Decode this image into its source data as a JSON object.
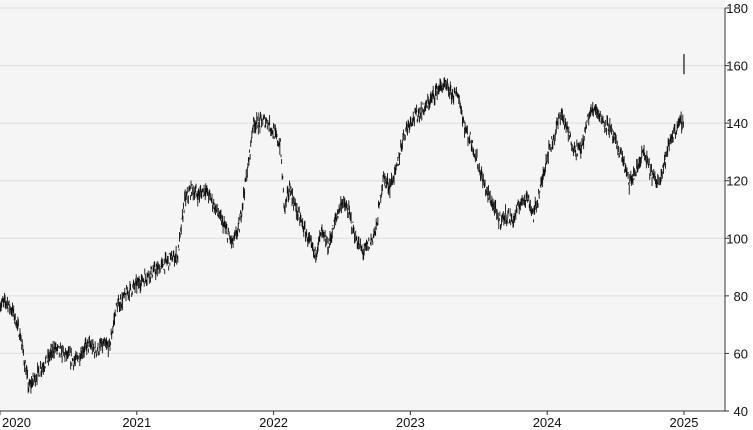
{
  "chart_data": {
    "type": "line",
    "style": "hlc-bars",
    "title": "",
    "xlabel": "",
    "ylabel": "",
    "y_axis_side": "right",
    "ylim": [
      40,
      180
    ],
    "y_ticks": [
      40,
      60,
      80,
      100,
      120,
      140,
      160,
      180
    ],
    "y_tick_labels": [
      "40",
      "60",
      "80",
      "100",
      "120",
      "140",
      "160",
      "180"
    ],
    "x_range": [
      2020.0,
      2025.3
    ],
    "x_ticks": [
      2020,
      2021,
      2022,
      2023,
      2024,
      2025
    ],
    "x_tick_labels": [
      "2020",
      "2021",
      "2022",
      "2023",
      "2024",
      "2025"
    ],
    "grid": "horizontal",
    "colors": {
      "plot_background": "#f5f5f5",
      "grid": "#dddddd",
      "series": "#111111"
    },
    "series": [
      {
        "points": [
          [
            2020.0,
            77
          ],
          [
            2020.05,
            78
          ],
          [
            2020.1,
            74
          ],
          [
            2020.15,
            66
          ],
          [
            2020.18,
            57
          ],
          [
            2020.21,
            48
          ],
          [
            2020.25,
            51
          ],
          [
            2020.3,
            55
          ],
          [
            2020.35,
            58
          ],
          [
            2020.4,
            62
          ],
          [
            2020.45,
            60
          ],
          [
            2020.5,
            59
          ],
          [
            2020.55,
            57
          ],
          [
            2020.6,
            61
          ],
          [
            2020.65,
            63
          ],
          [
            2020.7,
            61
          ],
          [
            2020.75,
            63
          ],
          [
            2020.8,
            62
          ],
          [
            2020.85,
            76
          ],
          [
            2020.9,
            79
          ],
          [
            2020.95,
            82
          ],
          [
            2021.0,
            84
          ],
          [
            2021.05,
            86
          ],
          [
            2021.1,
            88
          ],
          [
            2021.15,
            89
          ],
          [
            2021.2,
            91
          ],
          [
            2021.25,
            93
          ],
          [
            2021.3,
            94
          ],
          [
            2021.35,
            113
          ],
          [
            2021.4,
            117
          ],
          [
            2021.45,
            115
          ],
          [
            2021.5,
            117
          ],
          [
            2021.55,
            113
          ],
          [
            2021.6,
            108
          ],
          [
            2021.65,
            103
          ],
          [
            2021.7,
            98
          ],
          [
            2021.75,
            104
          ],
          [
            2021.78,
            115
          ],
          [
            2021.82,
            127
          ],
          [
            2021.85,
            140
          ],
          [
            2021.9,
            140
          ],
          [
            2021.95,
            141
          ],
          [
            2022.0,
            137
          ],
          [
            2022.05,
            132
          ],
          [
            2022.08,
            110
          ],
          [
            2022.12,
            118
          ],
          [
            2022.15,
            112
          ],
          [
            2022.2,
            106
          ],
          [
            2022.25,
            100
          ],
          [
            2022.3,
            94
          ],
          [
            2022.35,
            102
          ],
          [
            2022.4,
            97
          ],
          [
            2022.45,
            106
          ],
          [
            2022.5,
            113
          ],
          [
            2022.55,
            109
          ],
          [
            2022.6,
            100
          ],
          [
            2022.65,
            95
          ],
          [
            2022.7,
            98
          ],
          [
            2022.75,
            103
          ],
          [
            2022.8,
            121
          ],
          [
            2022.85,
            118
          ],
          [
            2022.9,
            124
          ],
          [
            2022.95,
            136
          ],
          [
            2023.0,
            141
          ],
          [
            2023.05,
            143
          ],
          [
            2023.1,
            145
          ],
          [
            2023.15,
            148
          ],
          [
            2023.2,
            152
          ],
          [
            2023.25,
            153
          ],
          [
            2023.3,
            150
          ],
          [
            2023.35,
            150
          ],
          [
            2023.4,
            138
          ],
          [
            2023.45,
            133
          ],
          [
            2023.5,
            125
          ],
          [
            2023.55,
            117
          ],
          [
            2023.6,
            112
          ],
          [
            2023.65,
            106
          ],
          [
            2023.7,
            108
          ],
          [
            2023.75,
            106
          ],
          [
            2023.8,
            112
          ],
          [
            2023.85,
            115
          ],
          [
            2023.9,
            108
          ],
          [
            2023.95,
            117
          ],
          [
            2024.0,
            129
          ],
          [
            2024.05,
            135
          ],
          [
            2024.1,
            144
          ],
          [
            2024.15,
            137
          ],
          [
            2024.2,
            131
          ],
          [
            2024.25,
            131
          ],
          [
            2024.3,
            142
          ],
          [
            2024.35,
            146
          ],
          [
            2024.4,
            141
          ],
          [
            2024.45,
            139
          ],
          [
            2024.5,
            133
          ],
          [
            2024.55,
            128
          ],
          [
            2024.6,
            119
          ],
          [
            2024.65,
            123
          ],
          [
            2024.7,
            130
          ],
          [
            2024.75,
            124
          ],
          [
            2024.8,
            119
          ],
          [
            2024.85,
            125
          ],
          [
            2024.9,
            134
          ],
          [
            2024.95,
            139
          ],
          [
            2025.0,
            141
          ]
        ]
      }
    ],
    "annotations": [
      {
        "type": "spike",
        "x": 2025.0,
        "low": 157,
        "high": 164
      }
    ]
  }
}
